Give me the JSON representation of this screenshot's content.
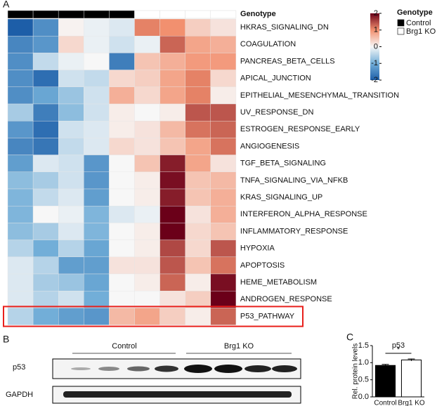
{
  "chart_data": [
    {
      "type": "heatmap",
      "panel_label": "A",
      "annotation_title": "Genotype",
      "legend": [
        "Control",
        "Brg1 KO"
      ],
      "legend_colors": [
        "#000000",
        "#ffffff"
      ],
      "column_genotype": [
        0,
        0,
        0,
        0,
        0,
        1,
        1,
        1,
        1
      ],
      "rows": [
        "HKRAS_SIGNALING_DN",
        "COAGULATION",
        "PANCREAS_BETA_CELLS",
        "APICAL_JUNCTION",
        "EPITHELIAL_MESENCHYMAL_TRANSITION",
        "UV_RESPONSE_DN",
        "ESTROGEN_RESPONSE_EARLY",
        "ANGIOGENESIS",
        "TGF_BETA_SIGNALING",
        "TNFA_SIGNALING_VIA_NFKB",
        "KRAS_SIGNALING_UP",
        "INTERFERON_ALPHA_RESPONSE",
        "INFLAMMATORY_RESPONSE",
        "HYPOXIA",
        "APOPTOSIS",
        "HEME_METABOLISM",
        "ANDROGEN_RESPONSE",
        "P53_PATHWAY"
      ],
      "values": [
        [
          -2,
          -1.4,
          0.05,
          -0.1,
          -0.2,
          1.1,
          1.0,
          0.4,
          0.2
        ],
        [
          -1.5,
          -1.3,
          0.3,
          -0.1,
          -0.3,
          -0.1,
          1.3,
          0.8,
          0.7
        ],
        [
          -1.4,
          -0.4,
          -0.1,
          0,
          -1.6,
          0.5,
          0.7,
          0.9,
          0.9
        ],
        [
          -1.4,
          -1.8,
          -0.3,
          -0.4,
          0.3,
          0.4,
          0.8,
          1.1,
          0.3
        ],
        [
          -1.4,
          -1.1,
          -0.7,
          -0.3,
          0.7,
          0.3,
          0.8,
          1.1,
          0.1
        ],
        [
          -0.6,
          -1.6,
          -0.8,
          -0.3,
          0.1,
          0,
          0.1,
          1.4,
          1.4
        ],
        [
          -1.3,
          -1.8,
          -0.3,
          -0.2,
          0.1,
          0.2,
          0.6,
          1.2,
          1.3
        ],
        [
          -1.5,
          -1.7,
          -0.4,
          -0.2,
          0.3,
          0.2,
          0.5,
          0.8,
          1.2
        ],
        [
          -1.2,
          -0.2,
          -0.3,
          -1.3,
          0,
          0.5,
          1.8,
          0.8,
          0.2
        ],
        [
          -0.8,
          -0.6,
          -0.3,
          -1.3,
          0,
          0.1,
          1.9,
          0.5,
          0.6
        ],
        [
          -0.9,
          -0.4,
          -0.2,
          -1.2,
          0,
          0.1,
          1.8,
          0.5,
          0.7
        ],
        [
          -0.9,
          0,
          -0.1,
          -0.9,
          -0.2,
          -0.1,
          2,
          0.2,
          0.7
        ],
        [
          -0.8,
          -0.6,
          -0.2,
          -0.9,
          0,
          0.1,
          2,
          0.3,
          0.5
        ],
        [
          -0.5,
          -1.0,
          -0.5,
          -1.1,
          0,
          0.1,
          1.5,
          0.3,
          1.4
        ],
        [
          -0.2,
          -0.5,
          -1.2,
          -1.2,
          0.2,
          0.2,
          1.4,
          0.5,
          1.2
        ],
        [
          -0.2,
          -0.6,
          -0.7,
          -1.1,
          0,
          0.1,
          1.3,
          0.1,
          1.9
        ],
        [
          -0.2,
          -0.5,
          -0.3,
          -1.0,
          0,
          0,
          0.2,
          0.4,
          2
        ],
        [
          -0.5,
          -1.0,
          -1.2,
          -1.3,
          0.6,
          0.8,
          0.4,
          0.1,
          1.3
        ]
      ],
      "zlim": [
        -2,
        2
      ],
      "cticks": [
        2,
        1,
        0,
        -1,
        -2
      ],
      "colormap": [
        "#1d5ea8",
        "#72aed8",
        "#f7f7f7",
        "#f2906f",
        "#6b0019"
      ],
      "highlight_row": 17,
      "highlight_color": "#e8201c"
    },
    {
      "type": "bar",
      "panel_label": "C",
      "title": "p53",
      "ylabel": "Rel. protein levels",
      "categories": [
        "Control",
        "Brg1 KO"
      ],
      "values": [
        0.92,
        1.08
      ],
      "errors": [
        0.03,
        0.03
      ],
      "colors": [
        "#000000",
        "#ffffff"
      ],
      "ylim": [
        0,
        1.5
      ],
      "yticks": [
        {
          "value": 0,
          "label": "0.0"
        },
        {
          "value": 0.5,
          "label": "0.5"
        },
        {
          "value": 1,
          "label": "1.0"
        },
        {
          "value": 1.5,
          "label": "1.5"
        }
      ],
      "annotation": "*"
    }
  ],
  "blot": {
    "panel_label": "B",
    "groups": [
      "Control",
      "Brg1 KO"
    ],
    "rows": [
      "p53",
      "GAPDH"
    ]
  }
}
